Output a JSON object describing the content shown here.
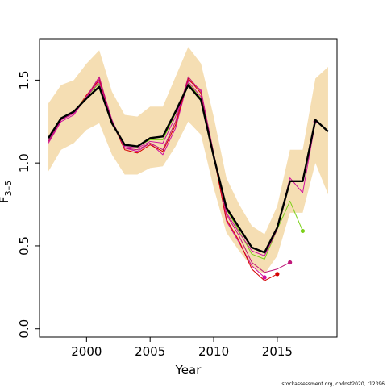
{
  "chart_data": {
    "type": "line",
    "title": "",
    "xlabel": "Year",
    "ylabel": "F",
    "ylabel_sub": "3–5",
    "xlim": [
      1996.3,
      2019.7
    ],
    "ylim": [
      -0.05,
      1.75
    ],
    "x_ticks": [
      2000,
      2005,
      2010,
      2015
    ],
    "y_ticks": [
      0.0,
      0.5,
      1.0,
      1.5
    ],
    "x_tick_labels": [
      "2000",
      "2005",
      "2010",
      "2015"
    ],
    "y_tick_labels": [
      "0.0",
      "0.5",
      "1.0",
      "1.5"
    ],
    "grid": false,
    "credit": "stockassessment.org, codnst2020, r12396",
    "colors": {
      "band": "#f5deb3",
      "main": "#000000",
      "retro1": "#d40000",
      "retro2": "#e0105a",
      "retro3": "#c0187a",
      "retro4": "#d010a0",
      "retro5": "#e8306a",
      "retro6": "#7cd01a"
    },
    "band": {
      "x": [
        1997,
        1998,
        1999,
        2000,
        2001,
        2002,
        2003,
        2004,
        2005,
        2006,
        2007,
        2008,
        2009,
        2010,
        2011,
        2012,
        2013,
        2014,
        2015,
        2016,
        2017,
        2018,
        2019
      ],
      "lower": [
        0.95,
        1.08,
        1.12,
        1.2,
        1.24,
        1.05,
        0.93,
        0.93,
        0.97,
        0.98,
        1.1,
        1.25,
        1.17,
        0.85,
        0.58,
        0.47,
        0.37,
        0.33,
        0.44,
        0.7,
        0.7,
        1.0,
        0.81
      ],
      "upper": [
        1.36,
        1.47,
        1.5,
        1.6,
        1.68,
        1.43,
        1.29,
        1.28,
        1.34,
        1.34,
        1.52,
        1.7,
        1.6,
        1.28,
        0.91,
        0.75,
        0.62,
        0.57,
        0.74,
        1.08,
        1.08,
        1.51,
        1.58
      ]
    },
    "series": [
      {
        "x": [
          1997,
          1998,
          1999,
          2000,
          2001,
          2002,
          2003,
          2004,
          2005,
          2006,
          2007,
          2008,
          2009,
          2010,
          2011,
          2012,
          2013,
          2014,
          2015,
          2016,
          2017,
          2018,
          2019
        ],
        "values": [
          1.15,
          1.27,
          1.31,
          1.39,
          1.46,
          1.24,
          1.11,
          1.1,
          1.15,
          1.16,
          1.31,
          1.47,
          1.38,
          1.04,
          0.73,
          0.61,
          0.49,
          0.46,
          0.61,
          0.89,
          0.89,
          1.26,
          1.19
        ],
        "color_key": "main",
        "width": 2.4,
        "end_point": false
      },
      {
        "x": [
          1997,
          1998,
          1999,
          2000,
          2001,
          2002,
          2003,
          2004,
          2005,
          2006,
          2007,
          2008,
          2009,
          2010,
          2011,
          2012,
          2013,
          2014
        ],
        "values": [
          1.12,
          1.25,
          1.29,
          1.4,
          1.51,
          1.26,
          1.09,
          1.07,
          1.12,
          1.05,
          1.21,
          1.5,
          1.44,
          1.05,
          0.65,
          0.52,
          0.38,
          0.31
        ],
        "color_key": "retro4",
        "width": 1,
        "end_point": true
      },
      {
        "x": [
          1997,
          1998,
          1999,
          2000,
          2001,
          2002,
          2003,
          2004,
          2005,
          2006,
          2007,
          2008,
          2009,
          2010,
          2011,
          2012,
          2013,
          2014,
          2015
        ],
        "values": [
          1.13,
          1.26,
          1.3,
          1.41,
          1.5,
          1.25,
          1.08,
          1.06,
          1.11,
          1.07,
          1.23,
          1.51,
          1.42,
          1.04,
          0.66,
          0.53,
          0.36,
          0.29,
          0.33
        ],
        "color_key": "retro1",
        "width": 1,
        "end_point": true
      },
      {
        "x": [
          1997,
          1998,
          1999,
          2000,
          2001,
          2002,
          2003,
          2004,
          2005,
          2006,
          2007,
          2008,
          2009,
          2010,
          2011,
          2012,
          2013,
          2014,
          2015,
          2016
        ],
        "values": [
          1.13,
          1.26,
          1.3,
          1.4,
          1.52,
          1.25,
          1.09,
          1.08,
          1.12,
          1.08,
          1.25,
          1.52,
          1.43,
          1.06,
          0.69,
          0.56,
          0.4,
          0.34,
          0.36,
          0.4
        ],
        "color_key": "retro3",
        "width": 1,
        "end_point": true
      },
      {
        "x": [
          1997,
          1998,
          1999,
          2000,
          2001,
          2002,
          2003,
          2004,
          2005,
          2006,
          2007,
          2008,
          2009,
          2010,
          2011,
          2012,
          2013,
          2014,
          2015,
          2016,
          2017
        ],
        "values": [
          1.14,
          1.27,
          1.31,
          1.4,
          1.48,
          1.24,
          1.11,
          1.1,
          1.14,
          1.14,
          1.3,
          1.48,
          1.39,
          1.04,
          0.72,
          0.59,
          0.45,
          0.42,
          0.6,
          0.77,
          0.59
        ],
        "color_key": "retro6",
        "width": 1,
        "end_point": true
      },
      {
        "x": [
          1997,
          1998,
          1999,
          2000,
          2001,
          2002,
          2003,
          2004,
          2005,
          2006,
          2007,
          2008,
          2009,
          2010,
          2011,
          2012,
          2013,
          2014,
          2015,
          2016,
          2017,
          2018
        ],
        "values": [
          1.14,
          1.26,
          1.3,
          1.4,
          1.49,
          1.24,
          1.1,
          1.09,
          1.13,
          1.12,
          1.28,
          1.49,
          1.4,
          1.05,
          0.7,
          0.58,
          0.47,
          0.44,
          0.6,
          0.91,
          0.82,
          1.25
        ],
        "color_key": "retro4",
        "width": 1,
        "end_point": true
      }
    ]
  }
}
